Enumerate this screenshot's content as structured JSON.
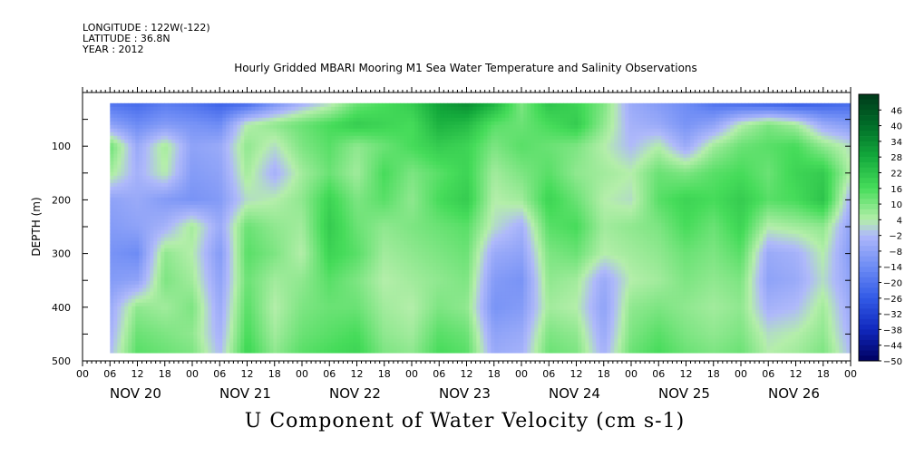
{
  "header": {
    "longitude": "LONGITUDE : 122W(-122)",
    "latitude": "LATITUDE : 36.8N",
    "year": "YEAR : 2012"
  },
  "chart_data": {
    "type": "heatmap",
    "title": "U Component of Water Velocity (cm s-1)",
    "subtitle": "Hourly Gridded MBARI Mooring M1 Sea Water Temperature and Salinity Observations",
    "ylabel": "DEPTH (m)",
    "xlabel": "",
    "ylim": [
      500,
      0
    ],
    "y_ticks": [
      100,
      200,
      300,
      400,
      500
    ],
    "x_hour_ticks": [
      "00",
      "06",
      "12",
      "18",
      "00",
      "06",
      "12",
      "18",
      "00",
      "06",
      "12",
      "18",
      "00",
      "06",
      "12",
      "18",
      "00",
      "06",
      "12",
      "18",
      "00",
      "06",
      "12",
      "18",
      "00",
      "06",
      "12",
      "18",
      "00"
    ],
    "x_day_labels": [
      "NOV 20",
      "NOV 21",
      "NOV 22",
      "NOV 23",
      "NOV 24",
      "NOV 25",
      "NOV 26"
    ],
    "data_extent": {
      "depth_min": 20,
      "depth_max": 485,
      "time_start_hour": 6,
      "time_end_hour": 168
    },
    "colorbar": {
      "labels": [
        "46",
        "40",
        "34",
        "28",
        "22",
        "16",
        "10",
        "4",
        "-2",
        "-8",
        "-14",
        "-20",
        "-26",
        "-32",
        "-38",
        "-44",
        "-50"
      ],
      "range": [
        -50,
        52
      ],
      "low_color": "#000060",
      "high_color": "#003a1a"
    },
    "field": {
      "depths": [
        20,
        60,
        100,
        150,
        200,
        250,
        300,
        350,
        400,
        450,
        485
      ],
      "hours": [
        6,
        12,
        18,
        24,
        30,
        36,
        42,
        48,
        54,
        60,
        66,
        72,
        78,
        84,
        90,
        96,
        102,
        108,
        114,
        120,
        126,
        132,
        138,
        144,
        150,
        156,
        162,
        168
      ],
      "values": [
        [
          -20,
          -22,
          -18,
          -20,
          -24,
          -22,
          -12,
          -4,
          2,
          12,
          16,
          20,
          30,
          34,
          26,
          10,
          22,
          18,
          10,
          -6,
          -10,
          -14,
          -20,
          -22,
          -24,
          -26,
          -24,
          -22
        ],
        [
          -8,
          -14,
          -10,
          -12,
          -14,
          4,
          8,
          12,
          16,
          20,
          18,
          16,
          26,
          24,
          14,
          12,
          16,
          20,
          8,
          -4,
          -6,
          -12,
          -8,
          4,
          10,
          6,
          -6,
          -10
        ],
        [
          12,
          -6,
          6,
          -8,
          -6,
          8,
          2,
          10,
          14,
          8,
          12,
          16,
          20,
          18,
          10,
          14,
          12,
          10,
          4,
          -2,
          4,
          -6,
          6,
          12,
          14,
          16,
          8,
          2
        ],
        [
          6,
          -4,
          4,
          -10,
          -8,
          6,
          -4,
          6,
          12,
          6,
          16,
          10,
          14,
          18,
          6,
          10,
          14,
          8,
          6,
          4,
          12,
          10,
          14,
          16,
          12,
          18,
          20,
          4
        ],
        [
          -8,
          -6,
          -10,
          -12,
          -10,
          2,
          4,
          8,
          18,
          10,
          14,
          8,
          16,
          20,
          4,
          6,
          18,
          12,
          4,
          2,
          14,
          18,
          16,
          20,
          14,
          16,
          22,
          -4
        ],
        [
          -10,
          -8,
          -4,
          6,
          -6,
          12,
          8,
          6,
          20,
          12,
          8,
          10,
          12,
          14,
          2,
          -4,
          14,
          16,
          6,
          8,
          10,
          16,
          12,
          18,
          4,
          6,
          8,
          -8
        ],
        [
          -12,
          -14,
          8,
          4,
          -10,
          14,
          10,
          4,
          18,
          14,
          6,
          8,
          10,
          12,
          -6,
          -8,
          10,
          12,
          4,
          6,
          8,
          12,
          10,
          14,
          -6,
          -4,
          4,
          -10
        ],
        [
          -10,
          -8,
          10,
          6,
          -8,
          12,
          6,
          8,
          14,
          10,
          4,
          6,
          8,
          10,
          -10,
          -12,
          8,
          6,
          -6,
          4,
          6,
          10,
          8,
          10,
          -8,
          -6,
          2,
          -8
        ],
        [
          -6,
          8,
          6,
          10,
          -6,
          14,
          4,
          10,
          12,
          12,
          6,
          4,
          10,
          8,
          -12,
          -10,
          6,
          4,
          -8,
          8,
          10,
          8,
          6,
          8,
          -4,
          -2,
          6,
          -6
        ],
        [
          -4,
          12,
          10,
          8,
          -4,
          16,
          6,
          12,
          14,
          16,
          8,
          6,
          14,
          12,
          -8,
          -6,
          10,
          8,
          -6,
          10,
          14,
          10,
          8,
          10,
          2,
          4,
          8,
          -4
        ],
        [
          -2,
          14,
          12,
          10,
          -2,
          18,
          8,
          14,
          16,
          18,
          10,
          8,
          16,
          14,
          -6,
          -4,
          12,
          10,
          -4,
          12,
          16,
          12,
          10,
          12,
          4,
          6,
          10,
          -2
        ]
      ]
    }
  }
}
